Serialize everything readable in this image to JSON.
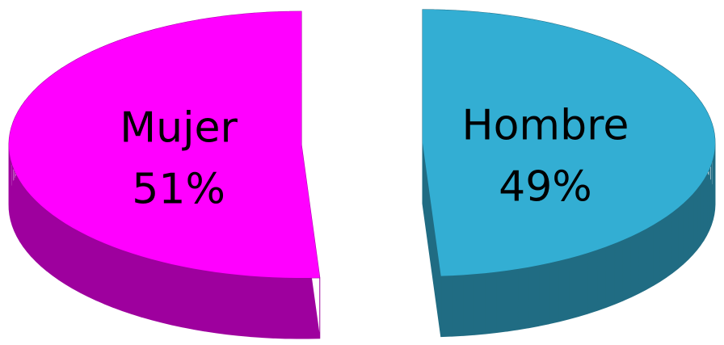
{
  "chart_data": {
    "type": "pie",
    "categories": [
      "Mujer",
      "Hombre"
    ],
    "values": [
      51,
      49
    ],
    "value_labels": [
      "51%",
      "49%"
    ],
    "colors": [
      "#ff00ff",
      "#33aed3"
    ],
    "exploded": true,
    "three_d": true
  }
}
